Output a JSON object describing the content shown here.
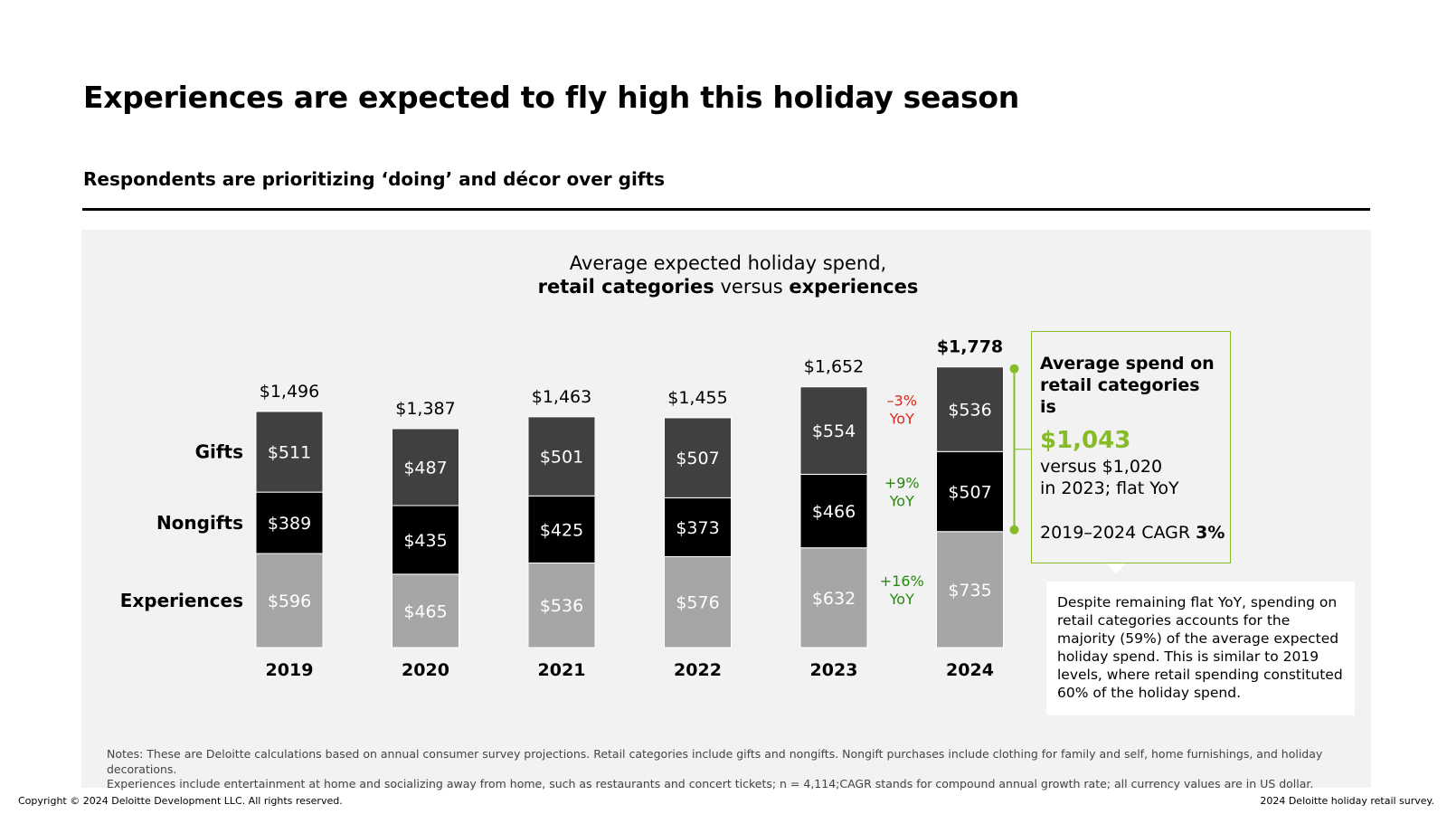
{
  "header": {
    "title": "Experiences are expected to fly high this holiday season",
    "subtitle": "Respondents are prioritizing ‘doing’ and décor over gifts"
  },
  "chart_title": {
    "line1": "Average expected holiday spend,",
    "bold1": "retail categories",
    "mid": " versus ",
    "bold2": "experiences"
  },
  "chart_data": {
    "type": "bar",
    "stacked": true,
    "categories": [
      "2019",
      "2020",
      "2021",
      "2022",
      "2023",
      "2024"
    ],
    "series": [
      {
        "name": "Experiences",
        "values": [
          596,
          465,
          536,
          576,
          632,
          735
        ],
        "color": "#a6a6a6"
      },
      {
        "name": "Nongifts",
        "values": [
          389,
          435,
          425,
          373,
          466,
          507
        ],
        "color": "#000000"
      },
      {
        "name": "Gifts",
        "values": [
          511,
          487,
          501,
          507,
          554,
          536
        ],
        "color": "#404040"
      }
    ],
    "total_labels": [
      "$1,496",
      "$1,387",
      "$1,463",
      "$1,455",
      "$1,652",
      "$1,778"
    ],
    "yoy_labels": [
      {
        "series": "Gifts",
        "pct": "–3%",
        "unit": "YoY",
        "color": "#da291c"
      },
      {
        "series": "Nongifts",
        "pct": "+9%",
        "unit": "YoY",
        "color": "#26890d"
      },
      {
        "series": "Experiences",
        "pct": "+16%",
        "unit": "YoY",
        "color": "#26890d"
      }
    ],
    "ylim": [
      0,
      1850
    ]
  },
  "callout": {
    "heading": "Average spend on retail categories is",
    "amount": "$1,043",
    "versus_line1": "versus $1,020",
    "versus_line2": "in 2023; flat YoY",
    "cagr_label": "2019–2024 CAGR ",
    "cagr_value": "3%",
    "accent_color": "#86bc25"
  },
  "note_box": "Despite remaining flat YoY, spending on retail categories accounts for the majority (59%) of the average expected holiday spend. This is similar to 2019 levels, where retail spending constituted 60% of the holiday spend.",
  "footnotes": {
    "line1": "Notes: These are Deloitte calculations based on annual consumer survey projections. Retail categories include gifts and nongifts. Nongift purchases include clothing for family and self, home furnishings, and holiday decorations.",
    "line2": "Experiences include entertainment at home and socializing away from home, such as restaurants and concert tickets; n = 4,114;CAGR stands for compound annual growth rate; all currency values are in US dollar."
  },
  "footer": {
    "copyright": "Copyright © 2024 Deloitte Development LLC. All rights reserved.",
    "source": "2024 Deloitte holiday retail survey."
  }
}
